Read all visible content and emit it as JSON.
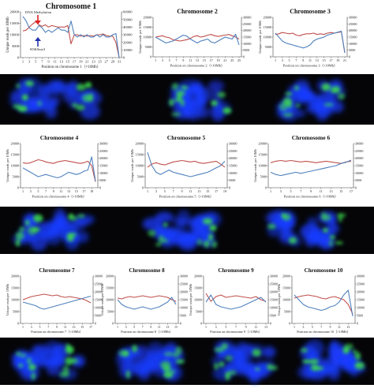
{
  "colors": {
    "methylation": "#c0504d",
    "h3k9me3": "#4f81bd",
    "micro_bg": "#050508",
    "micro_blue": "#1a3cff",
    "micro_green": "#3ddc4a",
    "annotation_red": "#e02020",
    "annotation_blue": "#2233aa"
  },
  "chart_data": [
    {
      "type": "line",
      "title": "Chromosome 1",
      "xlabel": "Position on chromosome 1（×10Mb）",
      "ylabel": "Unique reads per 10Mb",
      "xticks": [
        "1",
        "3",
        "5",
        "7",
        "9",
        "11",
        "13",
        "15",
        "17",
        "19",
        "21",
        "23",
        "25",
        "27",
        "29",
        "31"
      ],
      "ylim_left": [
        0,
        20000
      ],
      "yticks_left": [
        "0",
        "5000",
        "10000",
        "15000",
        "20000"
      ],
      "ylim_right": [
        0,
        60000
      ],
      "yticks_right": [
        "0",
        "10000",
        "20000",
        "30000",
        "40000",
        "50000",
        "60000"
      ],
      "annotations": [
        "DNA Methylation",
        "H3K9me3"
      ],
      "series": [
        {
          "name": "DNA Methylation",
          "axis": "right",
          "color": "#c0504d",
          "values": [
            35000,
            36000,
            40000,
            44000,
            47000,
            43000,
            41000,
            43000,
            40000,
            42000,
            41000,
            40000,
            40000,
            40000,
            42000,
            18000,
            30000,
            30000,
            28000,
            29000,
            28000,
            29000,
            28000,
            30000,
            30000,
            31000,
            29000,
            28000,
            28000,
            20000,
            0
          ]
        },
        {
          "name": "H3K9me3",
          "axis": "left",
          "color": "#4f81bd",
          "values": [
            18000,
            16000,
            13000,
            12000,
            12000,
            14000,
            13000,
            11000,
            12000,
            11000,
            12000,
            13000,
            12000,
            12000,
            11000,
            16000,
            10000,
            9000,
            10000,
            9000,
            10000,
            9000,
            9000,
            10000,
            9000,
            10000,
            9000,
            9000,
            10000,
            10500,
            0
          ]
        }
      ]
    },
    {
      "type": "line",
      "title": "Chromosome 2",
      "xlabel": "Position on chromosome 2（×10Mb）",
      "ylabel": "Unique reads per 10Mb",
      "xticks": [
        "1",
        "3",
        "5",
        "7",
        "9",
        "11",
        "13",
        "15",
        "17",
        "19",
        "21",
        "23",
        "25"
      ],
      "ylim_left": [
        0,
        20000
      ],
      "yticks_left": [
        "0",
        "5000",
        "10000",
        "15000",
        "20000"
      ],
      "ylim_right": [
        0,
        30000
      ],
      "yticks_right": [
        "0",
        "5000",
        "10000",
        "15000",
        "20000",
        "25000",
        "30000"
      ],
      "series": [
        {
          "name": "DNA Methylation",
          "axis": "right",
          "color": "#c0504d",
          "values": [
            15000,
            15500,
            16000,
            15000,
            14500,
            13000,
            12500,
            12000,
            12500,
            13000,
            14000,
            15500,
            16000,
            15000,
            15500,
            16500,
            17000,
            16000,
            15500,
            16000,
            16500,
            17000,
            16000,
            15000,
            13500
          ]
        },
        {
          "name": "H3K9me3",
          "axis": "left",
          "color": "#4f81bd",
          "values": [
            10000,
            9000,
            8000,
            7000,
            7500,
            8000,
            9000,
            10000,
            11000,
            10500,
            9000,
            8000,
            7000,
            8000,
            8500,
            9000,
            7500,
            7000,
            8000,
            9000,
            10000,
            9500,
            9000,
            11500,
            6000
          ]
        }
      ]
    },
    {
      "type": "line",
      "title": "Chromosome 3",
      "xlabel": "Position on chromosome 3（×10Mb）",
      "ylabel": "Unique reads per 10Mb",
      "xticks": [
        "1",
        "3",
        "5",
        "7",
        "9",
        "11",
        "13",
        "15",
        "17",
        "19",
        "21"
      ],
      "ylim_left": [
        0,
        20000
      ],
      "yticks_left": [
        "0",
        "5000",
        "10000",
        "15000",
        "20000"
      ],
      "ylim_right": [
        0,
        30000
      ],
      "yticks_right": [
        "0",
        "5000",
        "10000",
        "15000",
        "20000",
        "25000",
        "30000"
      ],
      "series": [
        {
          "name": "DNA Methylation",
          "axis": "right",
          "color": "#c0504d",
          "values": [
            17000,
            17500,
            18500,
            18000,
            17500,
            18000,
            16500,
            16000,
            17000,
            17500,
            17500,
            18000,
            17000,
            17500,
            17000,
            18000,
            18500,
            18000,
            18500,
            19000,
            3000
          ]
        },
        {
          "name": "H3K9me3",
          "axis": "left",
          "color": "#4f81bd",
          "values": [
            12000,
            10000,
            8000,
            7000,
            6500,
            6000,
            5500,
            5000,
            4500,
            5000,
            6000,
            8000,
            9000,
            9500,
            10000,
            11000,
            11500,
            12000,
            12500,
            13000,
            2000
          ]
        }
      ]
    },
    {
      "type": "line",
      "title": "Chromosome 4",
      "xlabel": "Position on chromosome 4（×10Mb）",
      "ylabel": "Unique reads per 10Mb",
      "xticks": [
        "1",
        "3",
        "5",
        "7",
        "9",
        "11",
        "13",
        "15",
        "17",
        "19"
      ],
      "ylim_left": [
        0,
        20000
      ],
      "yticks_left": [
        "0",
        "5000",
        "10000",
        "15000",
        "20000"
      ],
      "ylim_right": [
        0,
        30000
      ],
      "yticks_right": [
        "0",
        "5000",
        "10000",
        "15000",
        "20000",
        "25000",
        "30000"
      ],
      "series": [
        {
          "name": "DNA Methylation",
          "axis": "right",
          "color": "#c0504d",
          "values": [
            17000,
            16500,
            17000,
            18000,
            19000,
            18500,
            17500,
            17000,
            16500,
            17500,
            18000,
            18500,
            18000,
            17500,
            17000,
            16500,
            17000,
            18000,
            15000,
            4000
          ]
        },
        {
          "name": "H3K9me3",
          "axis": "left",
          "color": "#4f81bd",
          "values": [
            9000,
            8000,
            7000,
            6000,
            5000,
            5500,
            6000,
            5500,
            5000,
            4500,
            5000,
            6000,
            7000,
            6500,
            6000,
            6500,
            7500,
            8000,
            14000,
            3000
          ]
        }
      ]
    },
    {
      "type": "line",
      "title": "Chromosome 5",
      "xlabel": "Position on chromosome 5（×10Mb）",
      "ylabel": "Unique reads per 10Mb",
      "xticks": [
        "1",
        "3",
        "5",
        "7",
        "9",
        "11",
        "13",
        "15",
        "17",
        "19"
      ],
      "ylim_left": [
        0,
        20000
      ],
      "yticks_left": [
        "0",
        "5000",
        "10000",
        "15000",
        "20000"
      ],
      "ylim_right": [
        0,
        30000
      ],
      "yticks_right": [
        "0",
        "5000",
        "10000",
        "15000",
        "20000",
        "25000",
        "30000"
      ],
      "series": [
        {
          "name": "DNA Methylation",
          "axis": "right",
          "color": "#c0504d",
          "values": [
            14000,
            16000,
            17000,
            16000,
            15500,
            16500,
            17500,
            18000,
            18500,
            18000,
            17500,
            18000,
            17000,
            16500,
            17000,
            17500,
            18000,
            16000,
            14000
          ]
        },
        {
          "name": "H3K9me3",
          "axis": "left",
          "color": "#4f81bd",
          "values": [
            16000,
            10000,
            7000,
            6000,
            7000,
            8000,
            7000,
            6500,
            6000,
            5500,
            5000,
            5500,
            6000,
            6500,
            7000,
            8000,
            9000,
            10000,
            12000
          ]
        }
      ]
    },
    {
      "type": "line",
      "title": "Chromosome 6",
      "xlabel": "Position on chromosome 6（×10Mb）",
      "ylabel": "Unique reads per 10Mb",
      "xticks": [
        "1",
        "3",
        "5",
        "7",
        "9",
        "11",
        "13",
        "15",
        "17"
      ],
      "ylim_left": [
        0,
        20000
      ],
      "yticks_left": [
        "0",
        "5000",
        "10000",
        "15000",
        "20000"
      ],
      "ylim_right": [
        0,
        30000
      ],
      "yticks_right": [
        "0",
        "5000",
        "10000",
        "15000",
        "20000",
        "25000",
        "30000"
      ],
      "series": [
        {
          "name": "DNA Methylation",
          "axis": "right",
          "color": "#c0504d",
          "values": [
            17000,
            18000,
            18500,
            18000,
            18500,
            18000,
            17500,
            18000,
            17500,
            17000,
            17500,
            18000,
            17500,
            17000,
            16500,
            17500,
            18000
          ]
        },
        {
          "name": "H3K9me3",
          "axis": "left",
          "color": "#4f81bd",
          "values": [
            7000,
            6000,
            5500,
            6000,
            6500,
            7000,
            6500,
            7000,
            7500,
            8000,
            8500,
            9000,
            9500,
            10000,
            11000,
            11500,
            12500
          ]
        }
      ]
    },
    {
      "type": "line",
      "title": "Chromosome 7",
      "xlabel": "Position on chromosome 7（×10Mb）",
      "ylabel": "Unique reads per 10Mb",
      "xticks": [
        "1",
        "3",
        "5",
        "7",
        "9",
        "11",
        "13",
        "15",
        "17"
      ],
      "ylim_left": [
        0,
        20000
      ],
      "yticks_left": [
        "0",
        "5000",
        "10000",
        "15000",
        "20000"
      ],
      "ylim_right": [
        0,
        30000
      ],
      "yticks_right": [
        "0",
        "5000",
        "10000",
        "15000",
        "20000",
        "25000",
        "30000"
      ],
      "series": [
        {
          "name": "DNA Methylation",
          "axis": "right",
          "color": "#c0504d",
          "values": [
            15000,
            16000,
            17000,
            17500,
            18000,
            18500,
            18000,
            17500,
            18000,
            17000,
            16500,
            17000,
            16500,
            16000,
            15500,
            14500,
            13000
          ]
        },
        {
          "name": "H3K9me3",
          "axis": "left",
          "color": "#4f81bd",
          "values": [
            9000,
            8500,
            8000,
            7500,
            6500,
            6000,
            6500,
            7000,
            7500,
            8000,
            8500,
            9000,
            9500,
            10000,
            10500,
            11000,
            11500
          ]
        }
      ]
    },
    {
      "type": "line",
      "title": "Chromosome 8",
      "xlabel": "Position on chromosome 8（×10Mb）",
      "ylabel": "Unique reads per 10Mb",
      "xticks": [
        "1",
        "3",
        "5",
        "7",
        "9",
        "11",
        "13",
        "15"
      ],
      "ylim_left": [
        0,
        20000
      ],
      "yticks_left": [
        "0",
        "5000",
        "10000",
        "15000",
        "20000"
      ],
      "ylim_right": [
        0,
        30000
      ],
      "yticks_right": [
        "0",
        "5000",
        "10000",
        "15000",
        "20000",
        "25000",
        "30000"
      ],
      "series": [
        {
          "name": "DNA Methylation",
          "axis": "right",
          "color": "#c0504d",
          "values": [
            16000,
            15500,
            16500,
            17000,
            16500,
            17000,
            17500,
            17000,
            16500,
            17000,
            17500,
            17000,
            16500,
            15000,
            14000
          ]
        },
        {
          "name": "H3K9me3",
          "axis": "left",
          "color": "#4f81bd",
          "values": [
            10000,
            8000,
            7000,
            6500,
            6000,
            6500,
            7000,
            6500,
            6000,
            6500,
            7000,
            8000,
            9000,
            11000,
            8000
          ]
        }
      ]
    },
    {
      "type": "line",
      "title": "Chromosome 9",
      "xlabel": "Position on chromosome 9（×10Mb）",
      "ylabel": "Unique reads per 10Mb",
      "xticks": [
        "1",
        "3",
        "5",
        "7",
        "9",
        "11",
        "13"
      ],
      "ylim_left": [
        0,
        20000
      ],
      "yticks_left": [
        "0",
        "5000",
        "10000",
        "15000",
        "20000"
      ],
      "ylim_right": [
        0,
        30000
      ],
      "yticks_right": [
        "0",
        "5000",
        "10000",
        "15000",
        "20000",
        "25000",
        "30000"
      ],
      "series": [
        {
          "name": "DNA Methylation",
          "axis": "right",
          "color": "#c0504d",
          "values": [
            19000,
            14000,
            17000,
            18000,
            16500,
            17000,
            17500,
            17000,
            16500,
            16000,
            17000,
            15000,
            14000
          ]
        },
        {
          "name": "H3K9me3",
          "axis": "left",
          "color": "#4f81bd",
          "values": [
            9000,
            12000,
            8000,
            7000,
            6500,
            6000,
            6500,
            7000,
            8000,
            9000,
            10000,
            11000,
            9000
          ]
        }
      ]
    },
    {
      "type": "line",
      "title": "Chromosome 10",
      "xlabel": "Position on chromosome 10（×10Mb）",
      "ylabel": "Unique reads per 10Mb",
      "xticks": [
        "1",
        "3",
        "5",
        "7",
        "9",
        "11",
        "13"
      ],
      "ylim_left": [
        0,
        20000
      ],
      "yticks_left": [
        "0",
        "5000",
        "10000",
        "15000",
        "20000"
      ],
      "ylim_right": [
        0,
        30000
      ],
      "yticks_right": [
        "0",
        "5000",
        "10000",
        "15000",
        "20000",
        "25000",
        "30000"
      ],
      "series": [
        {
          "name": "DNA Methylation",
          "axis": "right",
          "color": "#c0504d",
          "values": [
            16000,
            17000,
            17500,
            18000,
            17500,
            17000,
            16000,
            15500,
            16500,
            17000,
            16000,
            15000,
            12000,
            6000
          ]
        },
        {
          "name": "H3K9me3",
          "axis": "left",
          "color": "#4f81bd",
          "values": [
            12000,
            10000,
            8000,
            7000,
            6500,
            6000,
            5500,
            6000,
            7000,
            7500,
            9000,
            12000,
            14000,
            3000
          ]
        }
      ]
    }
  ]
}
